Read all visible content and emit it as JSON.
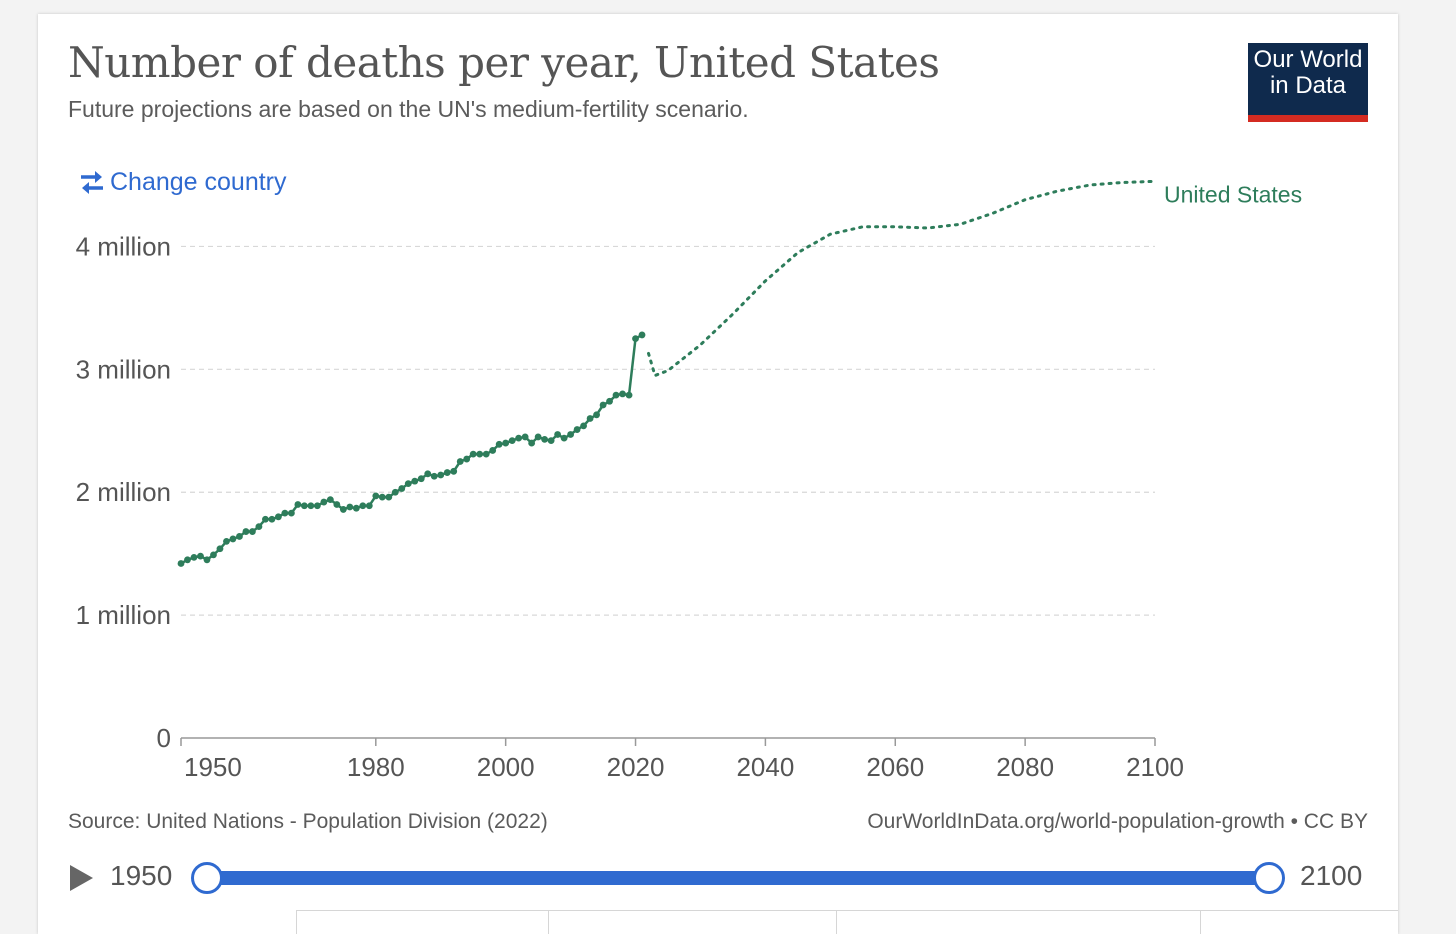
{
  "header": {
    "title": "Number of deaths per year, United States",
    "subtitle": "Future projections are based on the UN's medium-fertility scenario."
  },
  "logo": {
    "line1": "Our World",
    "line2": "in Data"
  },
  "controls": {
    "change_country": "Change country"
  },
  "footer": {
    "source": "Source: United Nations - Population Division (2022)",
    "url": "OurWorldInData.org/world-population-growth • CC BY"
  },
  "timeline": {
    "start_label": "1950",
    "end_label": "2100",
    "start_value": 1950,
    "end_value": 2100,
    "min": 1950,
    "max": 2100
  },
  "colors": {
    "series": "#2e7d5b",
    "accent": "#2f6ad0",
    "logo_bg": "#0f2a4d",
    "logo_bar": "#d42b21"
  },
  "chart_data": {
    "type": "line",
    "title": "Number of deaths per year, United States",
    "subtitle": "Future projections are based on the UN's medium-fertility scenario.",
    "xlim": [
      1950,
      2100
    ],
    "ylim": [
      0,
      4500000
    ],
    "x_ticks": [
      1950,
      1980,
      2000,
      2020,
      2040,
      2060,
      2080,
      2100
    ],
    "y_ticks": [
      {
        "value": 0,
        "label": "0"
      },
      {
        "value": 1000000,
        "label": "1 million"
      },
      {
        "value": 2000000,
        "label": "2 million"
      },
      {
        "value": 3000000,
        "label": "3 million"
      },
      {
        "value": 4000000,
        "label": "4 million"
      }
    ],
    "grid": "horizontal dashed",
    "legend": "end-of-line label",
    "series": [
      {
        "name": "United States",
        "style": "solid with markers",
        "points": [
          [
            1950,
            1420000
          ],
          [
            1951,
            1450000
          ],
          [
            1952,
            1470000
          ],
          [
            1953,
            1480000
          ],
          [
            1954,
            1450000
          ],
          [
            1955,
            1490000
          ],
          [
            1956,
            1540000
          ],
          [
            1957,
            1600000
          ],
          [
            1958,
            1620000
          ],
          [
            1959,
            1640000
          ],
          [
            1960,
            1680000
          ],
          [
            1961,
            1680000
          ],
          [
            1962,
            1720000
          ],
          [
            1963,
            1780000
          ],
          [
            1964,
            1780000
          ],
          [
            1965,
            1800000
          ],
          [
            1966,
            1830000
          ],
          [
            1967,
            1830000
          ],
          [
            1968,
            1900000
          ],
          [
            1969,
            1890000
          ],
          [
            1970,
            1890000
          ],
          [
            1971,
            1890000
          ],
          [
            1972,
            1920000
          ],
          [
            1973,
            1940000
          ],
          [
            1974,
            1900000
          ],
          [
            1975,
            1860000
          ],
          [
            1976,
            1880000
          ],
          [
            1977,
            1870000
          ],
          [
            1978,
            1890000
          ],
          [
            1979,
            1890000
          ],
          [
            1980,
            1970000
          ],
          [
            1981,
            1960000
          ],
          [
            1982,
            1960000
          ],
          [
            1983,
            2000000
          ],
          [
            1984,
            2030000
          ],
          [
            1985,
            2070000
          ],
          [
            1986,
            2090000
          ],
          [
            1987,
            2110000
          ],
          [
            1988,
            2150000
          ],
          [
            1989,
            2130000
          ],
          [
            1990,
            2140000
          ],
          [
            1991,
            2160000
          ],
          [
            1992,
            2170000
          ],
          [
            1993,
            2250000
          ],
          [
            1994,
            2270000
          ],
          [
            1995,
            2310000
          ],
          [
            1996,
            2310000
          ],
          [
            1997,
            2310000
          ],
          [
            1998,
            2340000
          ],
          [
            1999,
            2390000
          ],
          [
            2000,
            2400000
          ],
          [
            2001,
            2420000
          ],
          [
            2002,
            2440000
          ],
          [
            2003,
            2450000
          ],
          [
            2004,
            2400000
          ],
          [
            2005,
            2450000
          ],
          [
            2006,
            2430000
          ],
          [
            2007,
            2420000
          ],
          [
            2008,
            2470000
          ],
          [
            2009,
            2440000
          ],
          [
            2010,
            2470000
          ],
          [
            2011,
            2510000
          ],
          [
            2012,
            2540000
          ],
          [
            2013,
            2600000
          ],
          [
            2014,
            2630000
          ],
          [
            2015,
            2710000
          ],
          [
            2016,
            2740000
          ],
          [
            2017,
            2790000
          ],
          [
            2018,
            2800000
          ],
          [
            2019,
            2790000
          ],
          [
            2020,
            3250000
          ],
          [
            2021,
            3280000
          ]
        ]
      },
      {
        "name": "United States",
        "style": "dotted projection",
        "points": [
          [
            2022,
            3130000
          ],
          [
            2023,
            2950000
          ],
          [
            2025,
            2990000
          ],
          [
            2030,
            3200000
          ],
          [
            2035,
            3450000
          ],
          [
            2040,
            3720000
          ],
          [
            2045,
            3950000
          ],
          [
            2050,
            4100000
          ],
          [
            2055,
            4160000
          ],
          [
            2060,
            4160000
          ],
          [
            2065,
            4150000
          ],
          [
            2070,
            4180000
          ],
          [
            2075,
            4270000
          ],
          [
            2080,
            4380000
          ],
          [
            2085,
            4450000
          ],
          [
            2090,
            4500000
          ],
          [
            2095,
            4520000
          ],
          [
            2100,
            4530000
          ]
        ]
      }
    ],
    "series_label": "United States"
  }
}
